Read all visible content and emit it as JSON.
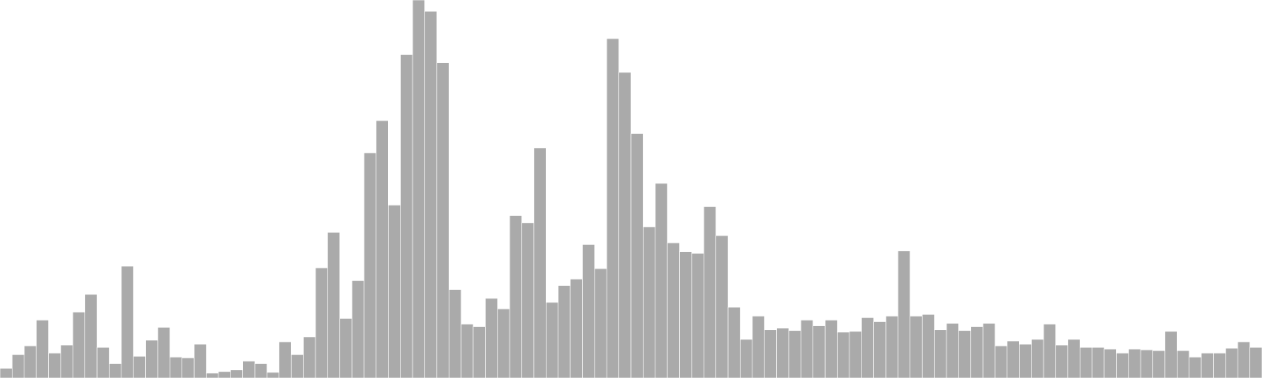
{
  "chart_data": {
    "type": "bar",
    "title": "",
    "xlabel": "",
    "ylabel": "",
    "ylim": [
      0,
      470
    ],
    "grid": false,
    "legend": "none",
    "colors": {
      "bar": "#aaaaaa",
      "edge": "#ffffff",
      "background": "#ffffff"
    },
    "values": [
      12,
      29,
      40,
      72,
      31,
      41,
      82,
      104,
      38,
      18,
      139,
      27,
      47,
      63,
      26,
      25,
      42,
      6,
      8,
      10,
      21,
      18,
      7,
      45,
      29,
      51,
      137,
      181,
      74,
      121,
      280,
      320,
      215,
      402,
      470,
      456,
      392,
      110,
      67,
      64,
      99,
      86,
      202,
      193,
      286,
      94,
      115,
      123,
      166,
      136,
      422,
      380,
      304,
      188,
      242,
      168,
      157,
      155,
      213,
      177,
      88,
      48,
      77,
      60,
      62,
      59,
      72,
      65,
      72,
      57,
      58,
      75,
      70,
      77,
      158,
      77,
      79,
      60,
      68,
      59,
      64,
      68,
      40,
      46,
      42,
      48,
      67,
      41,
      48,
      38,
      38,
      36,
      31,
      36,
      35,
      34,
      58,
      34,
      26,
      31,
      31,
      37,
      45,
      38
    ]
  }
}
